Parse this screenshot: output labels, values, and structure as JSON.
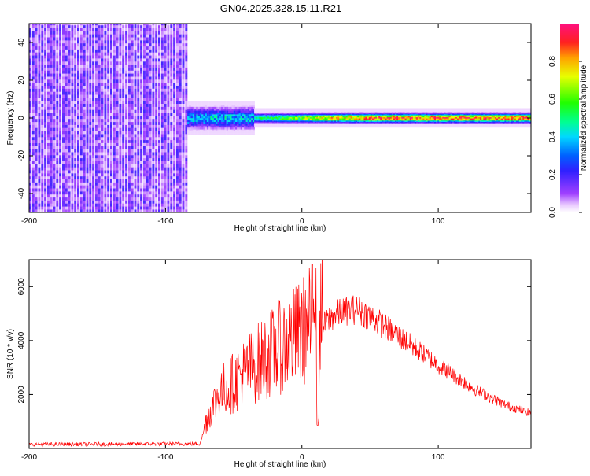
{
  "chart_data": [
    {
      "type": "heatmap",
      "title": "GN04.2025.328.15.11.R21",
      "xlabel": "Height of straight line (km)",
      "ylabel": "Frequency (Hz)",
      "xlim": [
        -200,
        168
      ],
      "ylim": [
        -50,
        50
      ],
      "xticks": [
        "-200",
        "-100",
        "0",
        "100"
      ],
      "yticks": [
        "-40",
        "-20",
        "0",
        "20",
        "40"
      ],
      "colorbar": {
        "label": "Normalized spectral amplitude",
        "range": [
          0,
          1
        ],
        "ticks": [
          "0.0",
          "0.2",
          "0.4",
          "0.6",
          "0.8"
        ]
      },
      "regions": [
        {
          "name": "broadband noise",
          "x_range": [
            -200,
            -84
          ],
          "freq_range": [
            -50,
            50
          ],
          "amplitude": 0.1
        },
        {
          "name": "dispersed onset",
          "x_range": [
            -84,
            -35
          ],
          "freq_range": [
            -8,
            8
          ],
          "amplitude": 0.4
        },
        {
          "name": "narrow carrier line",
          "x_range": [
            -35,
            168
          ],
          "center_freq": 0,
          "half_width_hz": 3,
          "amplitude": 0.9
        }
      ]
    },
    {
      "type": "line",
      "xlabel": "Height of straight line (km)",
      "ylabel": "SNR (10 * v/v)",
      "xlim": [
        -200,
        168
      ],
      "ylim": [
        0,
        7000
      ],
      "xticks": [
        "-200",
        "-100",
        "0",
        "100"
      ],
      "yticks": [
        "2000",
        "4000",
        "6000"
      ],
      "series": [
        {
          "name": "SNR",
          "color": "#ff0000",
          "x": [
            -200,
            -150,
            -100,
            -75,
            -70,
            -60,
            -50,
            -40,
            -30,
            -20,
            -10,
            0,
            10,
            20,
            30,
            40,
            50,
            70,
            100,
            130,
            150,
            168
          ],
          "values": [
            150,
            160,
            170,
            170,
            900,
            1800,
            2100,
            2500,
            2800,
            3100,
            3400,
            3700,
            4200,
            4800,
            5100,
            5150,
            4900,
            4200,
            3100,
            2100,
            1600,
            1300
          ]
        }
      ]
    }
  ]
}
